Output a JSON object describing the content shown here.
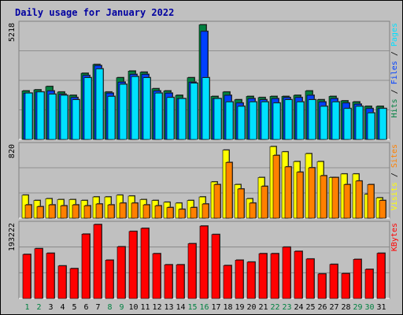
{
  "page": {
    "background": "#c0c0c0"
  },
  "chart_data": {
    "type": "bar",
    "title": "Daily usage for January 2022",
    "categories": [
      "1",
      "2",
      "3",
      "4",
      "5",
      "6",
      "7",
      "8",
      "9",
      "10",
      "11",
      "12",
      "13",
      "14",
      "15",
      "16",
      "17",
      "18",
      "19",
      "20",
      "21",
      "22",
      "23",
      "24",
      "25",
      "26",
      "27",
      "28",
      "29",
      "30",
      "31"
    ],
    "weekend_days": [
      "1",
      "2",
      "8",
      "9",
      "15",
      "16",
      "22",
      "23",
      "29",
      "30"
    ],
    "colors": {
      "hits": "#008040",
      "files": "#0040ff",
      "pages": "#00e0ff",
      "visits": "#ffff00",
      "sites": "#ff8000",
      "kbytes": "#ff0000",
      "weekday_label": "#000000",
      "weekend_label": "#008040",
      "title": "#0000a0"
    },
    "panels": [
      {
        "name": "traffic",
        "ymax": 5218,
        "ymax_label": "5218",
        "right_labels": [
          {
            "text": "Hits",
            "color": "#008040"
          },
          {
            "text": " / ",
            "color": "#000000"
          },
          {
            "text": "Files",
            "color": "#0040ff"
          },
          {
            "text": " / ",
            "color": "#000000"
          },
          {
            "text": "Pages",
            "color": "#00e0ff"
          }
        ],
        "series": [
          {
            "name": "Hits",
            "color": "#008040",
            "values": [
              2200,
              2250,
              2400,
              2150,
              2000,
              3000,
              3400,
              2150,
              2800,
              3100,
              3050,
              2300,
              2200,
              2000,
              2800,
              5200,
              1950,
              2150,
              1800,
              1950,
              1900,
              1950,
              1950,
              2000,
              2200,
              1800,
              1950,
              1750,
              1700,
              1500,
              1500
            ]
          },
          {
            "name": "Files",
            "color": "#0040ff",
            "values": [
              2100,
              2150,
              2200,
              2050,
              1900,
              2900,
              3350,
              2100,
              2600,
              2950,
              2950,
              2200,
              2100,
              1850,
              2600,
              4900,
              1850,
              2000,
              1650,
              1850,
              1800,
              1850,
              1900,
              1900,
              2000,
              1700,
              1850,
              1650,
              1600,
              1400,
              1400
            ]
          },
          {
            "name": "Pages",
            "color": "#00e0ff",
            "values": [
              2100,
              2150,
              2050,
              2000,
              1800,
              2800,
              3200,
              1950,
              2500,
              2850,
              2800,
              2100,
              1900,
              1850,
              2550,
              2800,
              1850,
              1700,
              1500,
              1700,
              1700,
              1650,
              1800,
              1700,
              1800,
              1500,
              1700,
              1400,
              1500,
              1200,
              1400
            ]
          }
        ]
      },
      {
        "name": "visits",
        "ymax": 820,
        "ymax_label": "820",
        "right_labels": [
          {
            "text": "Visits",
            "color": "#ffff00"
          },
          {
            "text": " / ",
            "color": "#000000"
          },
          {
            "text": "Sites",
            "color": "#ff8000"
          }
        ],
        "series": [
          {
            "name": "Visits",
            "color": "#ffff00",
            "values": [
              260,
              200,
              220,
              210,
              210,
              200,
              240,
              240,
              260,
              250,
              210,
              200,
              180,
              170,
              200,
              240,
              410,
              770,
              380,
              220,
              460,
              810,
              750,
              640,
              730,
              640,
              460,
              500,
              500,
              270,
              230
            ]
          },
          {
            "name": "Sites",
            "color": "#ff8000",
            "values": [
              150,
              130,
              150,
              140,
              150,
              140,
              160,
              150,
              170,
              170,
              150,
              140,
              120,
              100,
              120,
              160,
              380,
              630,
              330,
              170,
              360,
              710,
              580,
              520,
              570,
              480,
              460,
              380,
              420,
              380,
              200
            ]
          }
        ]
      },
      {
        "name": "kbytes",
        "ymax": 193222,
        "ymax_label": "193222",
        "right_labels": [
          {
            "text": "KBytes",
            "color": "#ff0000"
          }
        ],
        "series": [
          {
            "name": "KBytes",
            "color": "#ff0000",
            "values": [
              115000,
              130000,
              118000,
              85000,
              78000,
              168000,
              193000,
              100000,
              135000,
              175000,
              183000,
              117000,
              88000,
              88000,
              143000,
              189000,
              167000,
              86000,
              100000,
              95000,
              117000,
              117000,
              134000,
              123000,
              103000,
              64000,
              89000,
              65000,
              102000,
              76000,
              118000
            ]
          }
        ]
      }
    ]
  }
}
